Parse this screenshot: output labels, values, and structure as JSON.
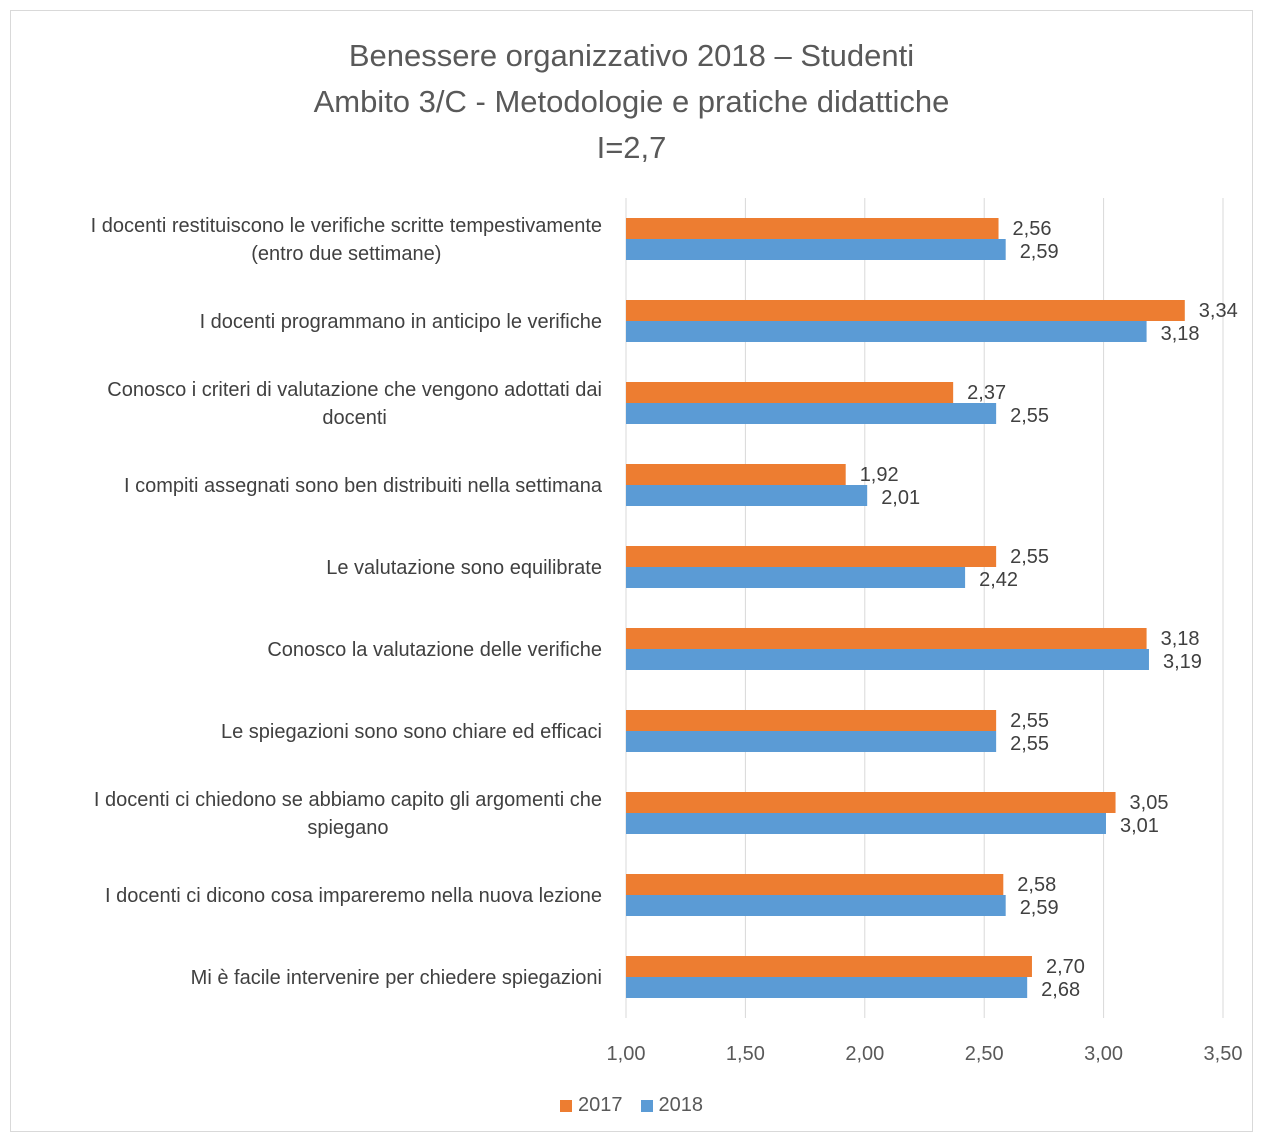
{
  "chart_data": {
    "type": "bar",
    "orientation": "horizontal",
    "title_lines": [
      "Benessere organizzativo 2018 – Studenti",
      "Ambito 3/C - Metodologie e pratiche didattiche",
      "I=2,7"
    ],
    "categories": [
      [
        "I docenti restituiscono le verifiche scritte tempestivamente",
        "(entro due settimane)"
      ],
      [
        "I docenti programmano in anticipo le verifiche"
      ],
      [
        "Conosco i criteri di valutazione che vengono adottati dai",
        "docenti"
      ],
      [
        "I compiti assegnati sono ben distribuiti nella settimana"
      ],
      [
        "Le valutazione sono equilibrate"
      ],
      [
        "Conosco la valutazione delle verifiche"
      ],
      [
        "Le spiegazioni sono sono chiare ed efficaci"
      ],
      [
        "I docenti ci chiedono se abbiamo capito gli argomenti che",
        "spiegano"
      ],
      [
        "I docenti ci dicono cosa impareremo nella nuova lezione"
      ],
      [
        "Mi è facile intervenire per chiedere spiegazioni"
      ]
    ],
    "series": [
      {
        "name": "2017",
        "color": "#ed7d31",
        "values": [
          2.56,
          3.34,
          2.37,
          1.92,
          2.55,
          3.18,
          2.55,
          3.05,
          2.58,
          2.7
        ],
        "labels": [
          "2,56",
          "3,34",
          "2,37",
          "1,92",
          "2,55",
          "3,18",
          "2,55",
          "3,05",
          "2,58",
          "2,70"
        ]
      },
      {
        "name": "2018",
        "color": "#5b9bd5",
        "values": [
          2.59,
          3.18,
          2.55,
          2.01,
          2.42,
          3.19,
          2.55,
          3.01,
          2.59,
          2.68
        ],
        "labels": [
          "2,59",
          "3,18",
          "2,55",
          "2,01",
          "2,42",
          "3,19",
          "2,55",
          "3,01",
          "2,59",
          "2,68"
        ]
      }
    ],
    "xlim": [
      1.0,
      3.5
    ],
    "x_ticks": [
      1.0,
      1.5,
      2.0,
      2.5,
      3.0,
      3.5
    ],
    "x_tick_labels": [
      "1,00",
      "1,50",
      "2,00",
      "2,50",
      "3,00",
      "3,50"
    ],
    "grid": "vertical",
    "legend_position": "bottom"
  }
}
